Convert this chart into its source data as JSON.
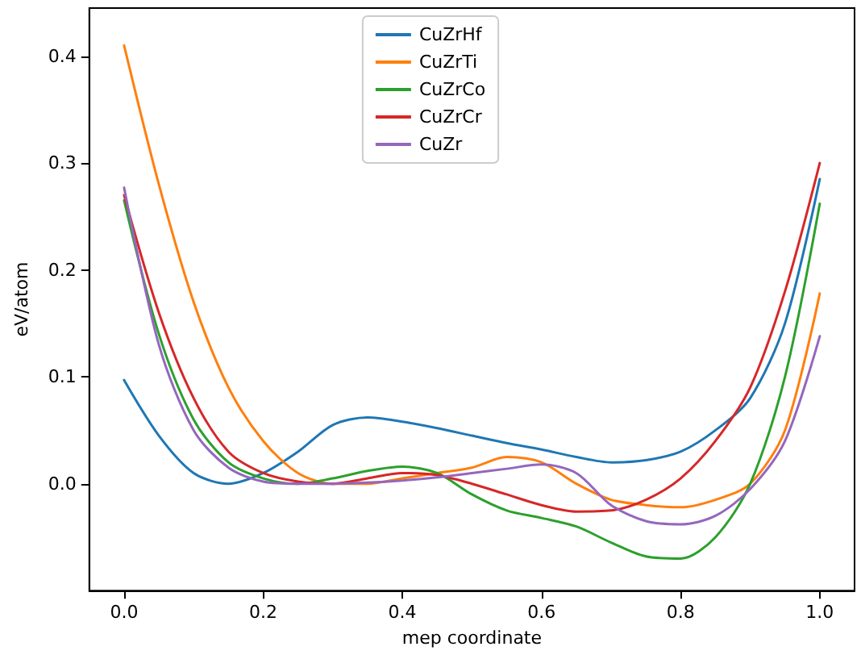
{
  "chart_data": {
    "type": "line",
    "xlabel": "mep coordinate",
    "ylabel": "eV/atom",
    "x": [
      0,
      0.05,
      0.1,
      0.15,
      0.2,
      0.25,
      0.3,
      0.35,
      0.4,
      0.45,
      0.5,
      0.55,
      0.6,
      0.65,
      0.7,
      0.75,
      0.8,
      0.85,
      0.9,
      0.95,
      1.0
    ],
    "series": [
      {
        "name": "CuZrHf",
        "color": "#1f77b4",
        "values": [
          0.097,
          0.045,
          0.01,
          0.0,
          0.01,
          0.03,
          0.055,
          0.062,
          0.058,
          0.052,
          0.045,
          0.038,
          0.032,
          0.025,
          0.02,
          0.022,
          0.03,
          0.05,
          0.08,
          0.15,
          0.285
        ]
      },
      {
        "name": "CuZrTi",
        "color": "#ff7f0e",
        "values": [
          0.41,
          0.28,
          0.17,
          0.09,
          0.04,
          0.01,
          0.0,
          0.0,
          0.005,
          0.01,
          0.015,
          0.025,
          0.02,
          0.0,
          -0.015,
          -0.02,
          -0.022,
          -0.015,
          0.0,
          0.05,
          0.178
        ]
      },
      {
        "name": "CuZrCo",
        "color": "#2ca02c",
        "values": [
          0.265,
          0.14,
          0.06,
          0.02,
          0.005,
          0.0,
          0.005,
          0.012,
          0.016,
          0.01,
          -0.01,
          -0.025,
          -0.032,
          -0.04,
          -0.055,
          -0.068,
          -0.07,
          -0.05,
          0.0,
          0.1,
          0.262
        ]
      },
      {
        "name": "CuZrCr",
        "color": "#d62728",
        "values": [
          0.27,
          0.16,
          0.08,
          0.03,
          0.01,
          0.002,
          0.0,
          0.005,
          0.01,
          0.008,
          0.0,
          -0.01,
          -0.02,
          -0.026,
          -0.025,
          -0.015,
          0.005,
          0.04,
          0.09,
          0.18,
          0.3
        ]
      },
      {
        "name": "CuZr",
        "color": "#9467bd",
        "values": [
          0.277,
          0.13,
          0.05,
          0.015,
          0.002,
          0.0,
          0.0,
          0.001,
          0.003,
          0.006,
          0.01,
          0.014,
          0.018,
          0.01,
          -0.02,
          -0.035,
          -0.038,
          -0.03,
          -0.005,
          0.04,
          0.138
        ]
      }
    ],
    "xlim": [
      -0.05,
      1.05
    ],
    "ylim": [
      -0.1,
      0.445
    ],
    "xticks": [
      {
        "value": 0,
        "label": "0.0"
      },
      {
        "value": 0.2,
        "label": "0.2"
      },
      {
        "value": 0.4,
        "label": "0.4"
      },
      {
        "value": 0.6,
        "label": "0.6"
      },
      {
        "value": 0.8,
        "label": "0.8"
      },
      {
        "value": 1,
        "label": "1.0"
      }
    ],
    "yticks": [
      {
        "value": 0,
        "label": "0.0"
      },
      {
        "value": 0.1,
        "label": "0.1"
      },
      {
        "value": 0.2,
        "label": "0.2"
      },
      {
        "value": 0.3,
        "label": "0.3"
      },
      {
        "value": 0.4,
        "label": "0.4"
      }
    ],
    "legend": "top",
    "grid": false,
    "marker": "none",
    "line_style": "solid"
  }
}
